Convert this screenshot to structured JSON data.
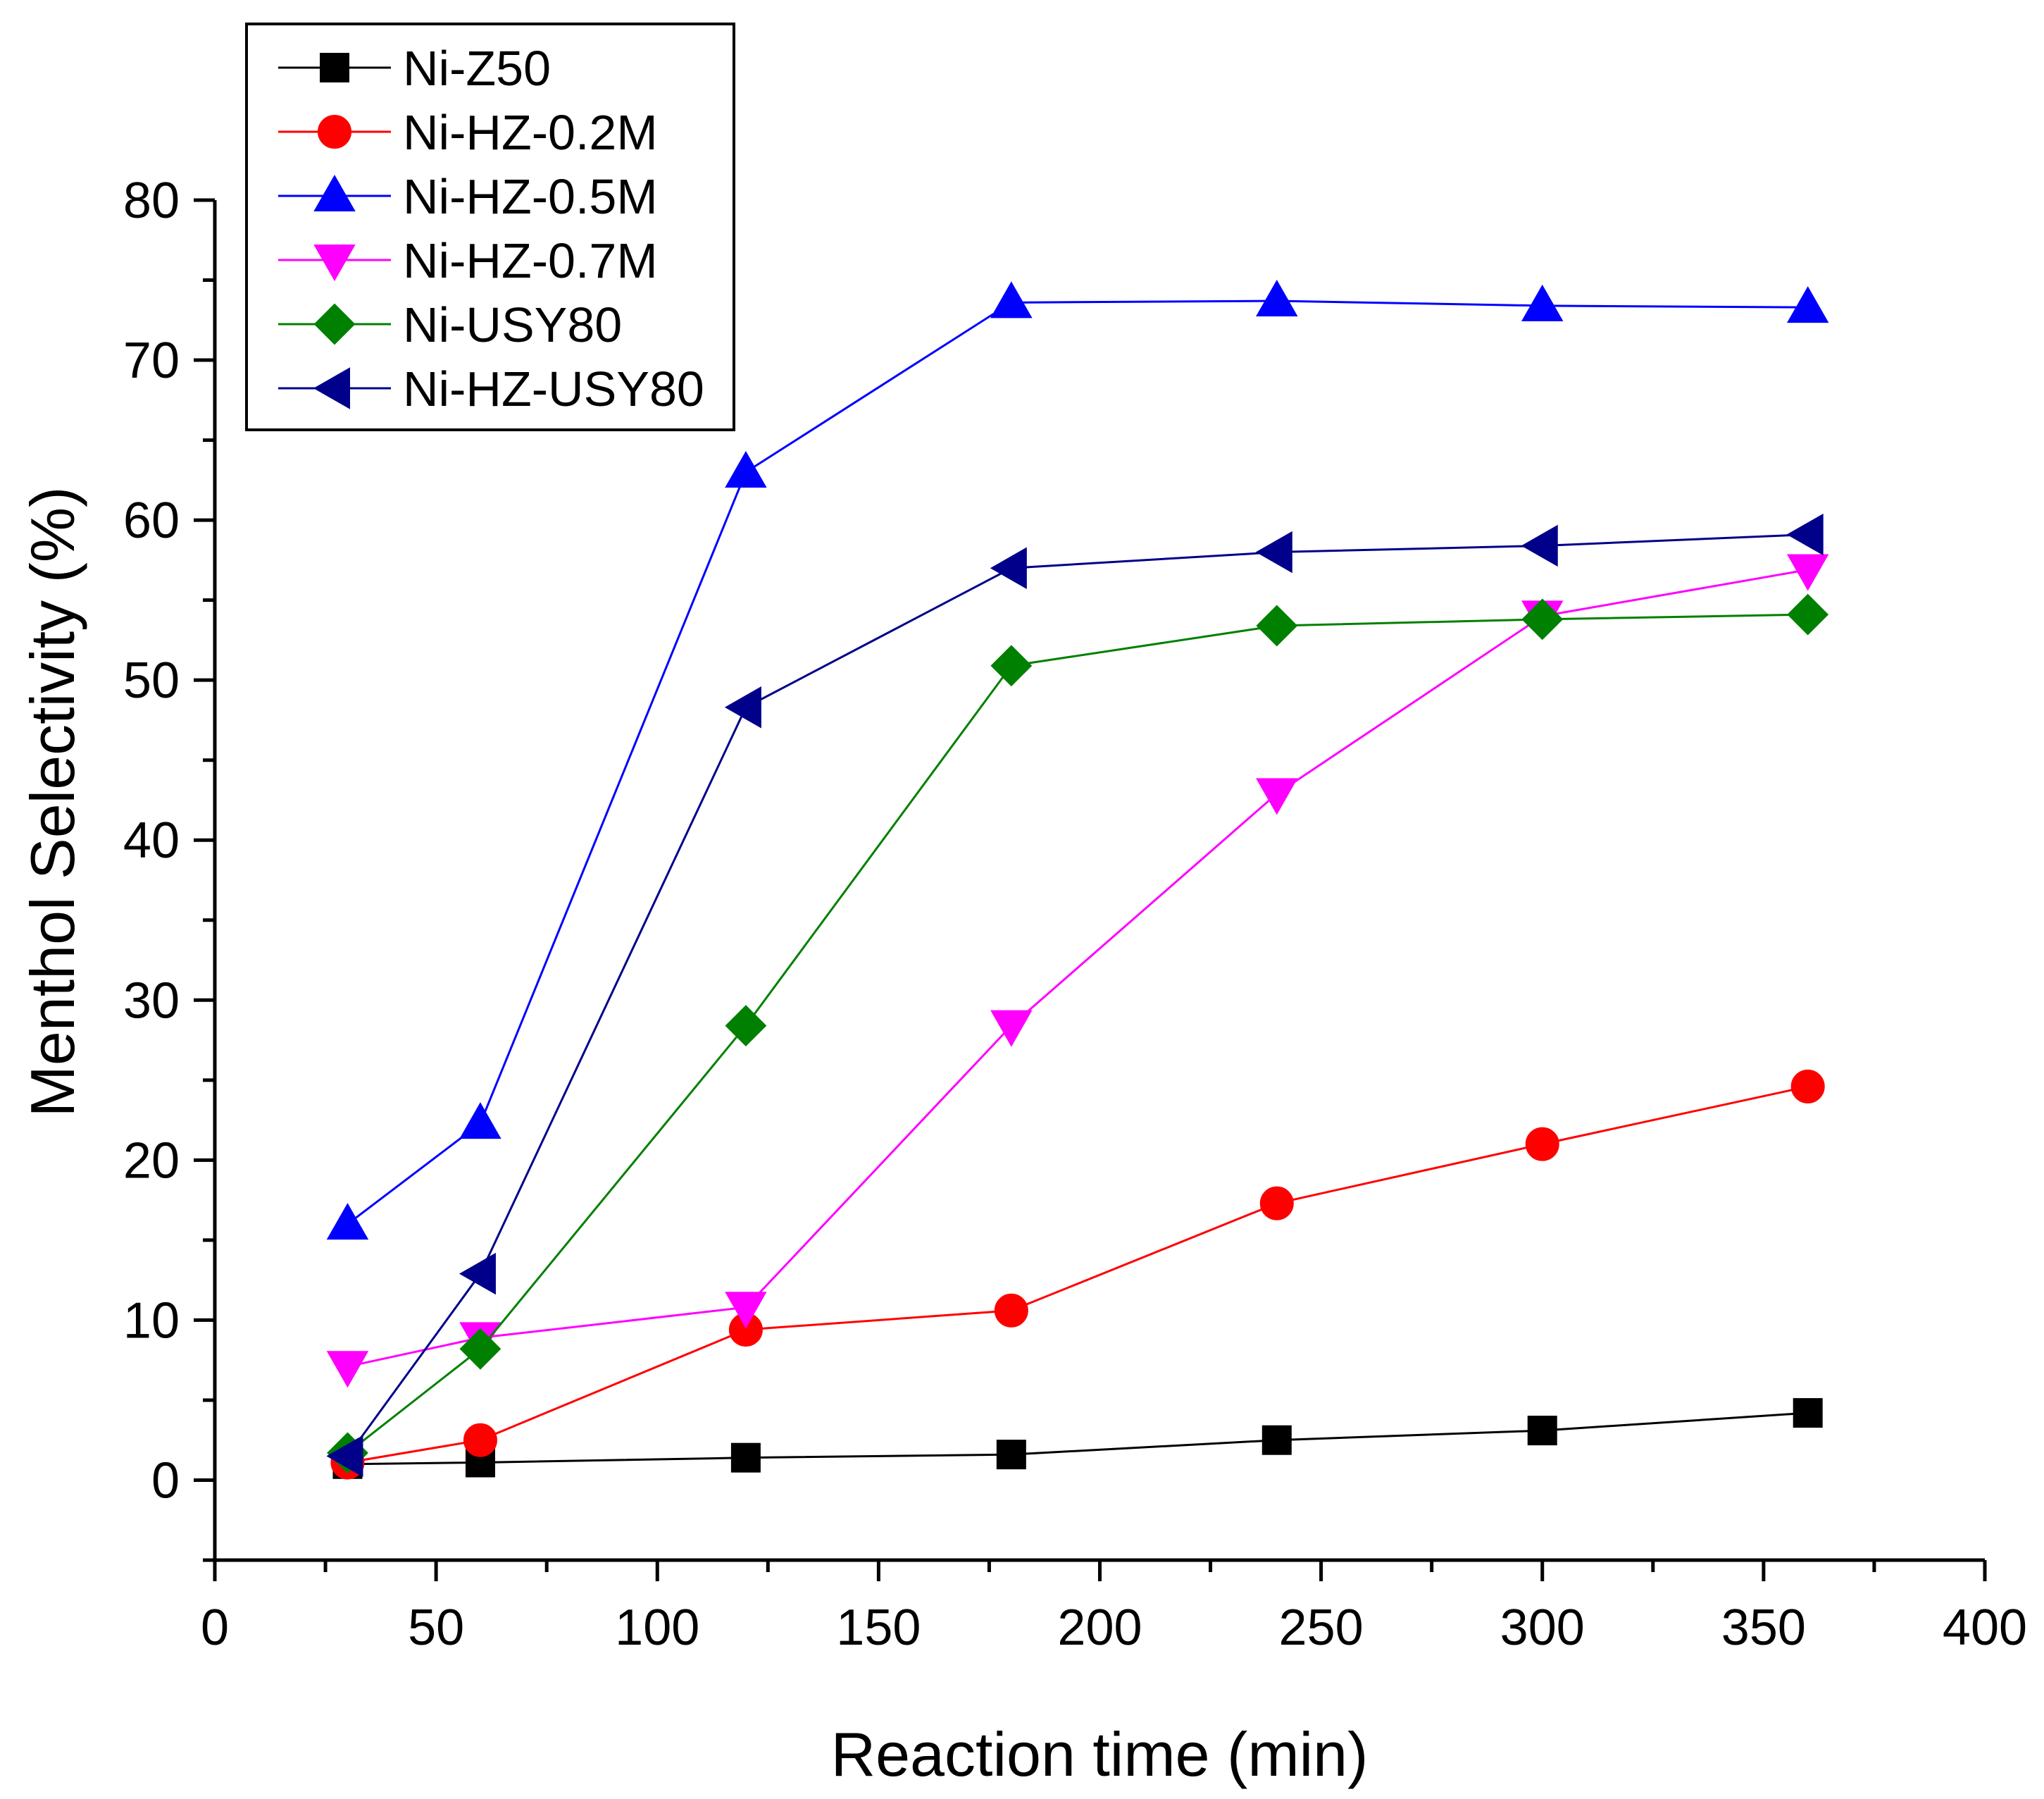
{
  "chart_data": {
    "type": "line",
    "title": "",
    "xlabel": "Reaction time (min)",
    "ylabel": "Menthol Selectivity (%)",
    "xlim": [
      0,
      400
    ],
    "ylim": [
      -5,
      80
    ],
    "xticks": [
      0,
      50,
      100,
      150,
      200,
      250,
      300,
      350,
      400
    ],
    "yticks": [
      0,
      10,
      20,
      30,
      40,
      50,
      60,
      70,
      80
    ],
    "xtick_labels": [
      "0",
      "50",
      "100",
      "150",
      "200",
      "250",
      "300",
      "350",
      "400"
    ],
    "ytick_labels": [
      "0",
      "10",
      "20",
      "30",
      "40",
      "50",
      "60",
      "70",
      "80"
    ],
    "grid": false,
    "legend_position": "top-left",
    "x": [
      30,
      60,
      120,
      180,
      240,
      300,
      360
    ],
    "series": [
      {
        "name": "Ni-Z50",
        "color": "#000000",
        "marker": "square",
        "values": [
          1.0,
          1.1,
          1.4,
          1.6,
          2.5,
          3.1,
          4.2
        ]
      },
      {
        "name": "Ni-HZ-0.2M",
        "color": "#ff0000",
        "marker": "circle",
        "values": [
          1.1,
          2.5,
          9.4,
          10.6,
          17.3,
          21.0,
          24.6
        ]
      },
      {
        "name": "Ni-HZ-0.5M",
        "color": "#0000ff",
        "marker": "triangle-up",
        "values": [
          16.0,
          22.3,
          63.0,
          73.6,
          73.7,
          73.4,
          73.3
        ]
      },
      {
        "name": "Ni-HZ-0.7M",
        "color": "#ff00ff",
        "marker": "triangle-down",
        "values": [
          7.1,
          8.9,
          10.8,
          28.4,
          42.9,
          54.0,
          56.9
        ]
      },
      {
        "name": "Ni-USY80",
        "color": "#008000",
        "marker": "diamond",
        "values": [
          1.7,
          8.2,
          28.4,
          50.9,
          53.4,
          53.8,
          54.1
        ]
      },
      {
        "name": "Ni-HZ-USY80",
        "color": "#00008b",
        "marker": "triangle-left",
        "values": [
          1.5,
          12.9,
          48.3,
          57.0,
          58.0,
          58.4,
          59.1
        ]
      }
    ]
  }
}
